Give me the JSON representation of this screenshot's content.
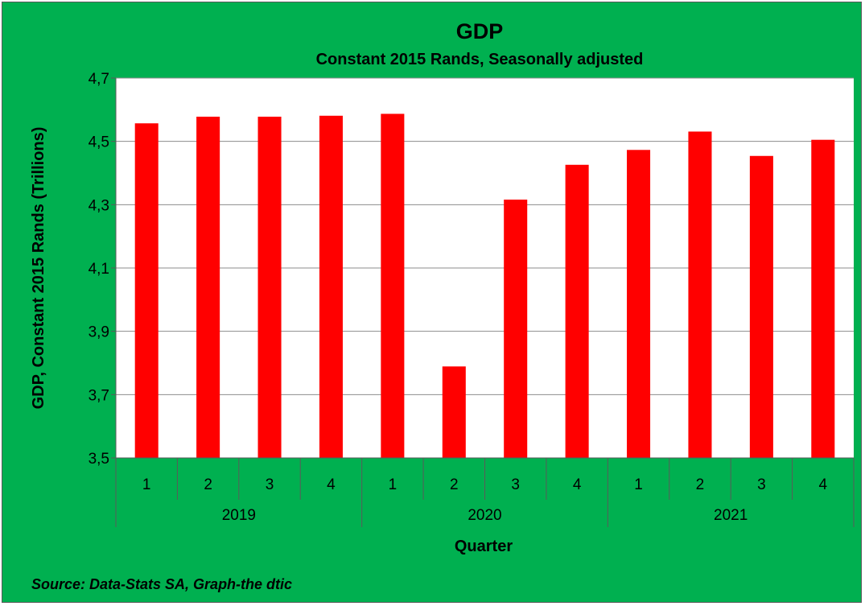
{
  "chart_data": {
    "type": "bar",
    "title": "GDP",
    "subtitle": "Constant 2015 Rands, Seasonally adjusted",
    "xlabel": "Quarter",
    "ylabel": "GDP, Constant 2015 Rands (Trillions)",
    "ylim": [
      3.5,
      4.7
    ],
    "yticks": [
      "3,5",
      "3,7",
      "3,9",
      "4,1",
      "4,3",
      "4,5",
      "4,7"
    ],
    "ytick_values": [
      3.5,
      3.7,
      3.9,
      4.1,
      4.3,
      4.5,
      4.7
    ],
    "grid": true,
    "legend": "none",
    "categories": [
      "1",
      "2",
      "3",
      "4",
      "1",
      "2",
      "3",
      "4",
      "1",
      "2",
      "3",
      "4"
    ],
    "groups": [
      {
        "label": "2019",
        "count": 4
      },
      {
        "label": "2020",
        "count": 4
      },
      {
        "label": "2021",
        "count": 4
      }
    ],
    "values": [
      4.557,
      4.578,
      4.578,
      4.581,
      4.587,
      3.789,
      4.316,
      4.426,
      4.473,
      4.531,
      4.454,
      4.505
    ],
    "bar_color": "#ff0000",
    "background_color": "#00b050",
    "plot_background": "#ffffff"
  },
  "source": "Source: Data-Stats SA, Graph-the dtic"
}
